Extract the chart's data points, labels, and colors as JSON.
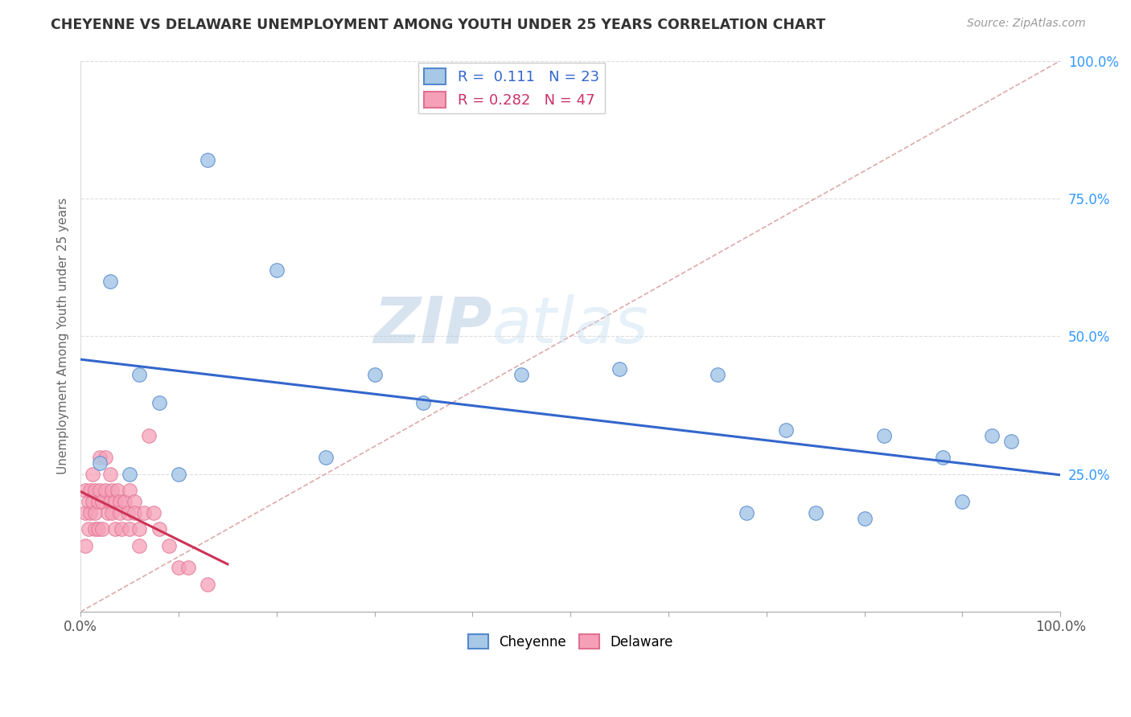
{
  "title": "CHEYENNE VS DELAWARE UNEMPLOYMENT AMONG YOUTH UNDER 25 YEARS CORRELATION CHART",
  "source": "Source: ZipAtlas.com",
  "ylabel": "Unemployment Among Youth under 25 years",
  "xlim": [
    0,
    1
  ],
  "ylim": [
    0,
    1
  ],
  "xticks": [
    0.0,
    0.1,
    0.2,
    0.3,
    0.4,
    0.5,
    0.6,
    0.7,
    0.8,
    0.9,
    1.0
  ],
  "xticklabels": [
    "0.0%",
    "",
    "",
    "",
    "",
    "",
    "",
    "",
    "",
    "",
    "100.0%"
  ],
  "yticks": [
    0.0,
    0.25,
    0.5,
    0.75,
    1.0
  ],
  "yticklabels": [
    "",
    "25.0%",
    "50.0%",
    "75.0%",
    "100.0%"
  ],
  "cheyenne_color": "#a8c8e8",
  "delaware_color": "#f5a0b8",
  "cheyenne_edge_color": "#5588cc",
  "delaware_edge_color": "#e07090",
  "cheyenne_line_color": "#3366cc",
  "delaware_line_color": "#cc3355",
  "diag_color": "#ddaaaa",
  "R_cheyenne": 0.111,
  "N_cheyenne": 23,
  "R_delaware": 0.282,
  "N_delaware": 47,
  "watermark_zip": "ZIP",
  "watermark_atlas": "atlas",
  "cheyenne_x": [
    0.02,
    0.03,
    0.05,
    0.06,
    0.08,
    0.1,
    0.13,
    0.2,
    0.25,
    0.3,
    0.35,
    0.45,
    0.55,
    0.65,
    0.68,
    0.72,
    0.75,
    0.8,
    0.82,
    0.88,
    0.9,
    0.93,
    0.95
  ],
  "cheyenne_y": [
    0.27,
    0.6,
    0.25,
    0.43,
    0.38,
    0.25,
    0.82,
    0.62,
    0.28,
    0.43,
    0.38,
    0.43,
    0.44,
    0.43,
    0.18,
    0.33,
    0.18,
    0.17,
    0.32,
    0.28,
    0.2,
    0.32,
    0.31
  ],
  "delaware_x": [
    0.005,
    0.005,
    0.005,
    0.008,
    0.008,
    0.01,
    0.01,
    0.012,
    0.012,
    0.015,
    0.015,
    0.015,
    0.018,
    0.018,
    0.02,
    0.02,
    0.022,
    0.022,
    0.025,
    0.025,
    0.028,
    0.03,
    0.03,
    0.032,
    0.032,
    0.035,
    0.035,
    0.038,
    0.04,
    0.04,
    0.042,
    0.045,
    0.048,
    0.05,
    0.05,
    0.055,
    0.055,
    0.06,
    0.06,
    0.065,
    0.07,
    0.075,
    0.08,
    0.09,
    0.1,
    0.11,
    0.13
  ],
  "delaware_y": [
    0.22,
    0.18,
    0.12,
    0.2,
    0.15,
    0.22,
    0.18,
    0.25,
    0.2,
    0.22,
    0.18,
    0.15,
    0.2,
    0.15,
    0.28,
    0.22,
    0.2,
    0.15,
    0.28,
    0.22,
    0.18,
    0.25,
    0.2,
    0.22,
    0.18,
    0.2,
    0.15,
    0.22,
    0.2,
    0.18,
    0.15,
    0.2,
    0.18,
    0.22,
    0.15,
    0.2,
    0.18,
    0.15,
    0.12,
    0.18,
    0.32,
    0.18,
    0.15,
    0.12,
    0.08,
    0.08,
    0.05
  ]
}
